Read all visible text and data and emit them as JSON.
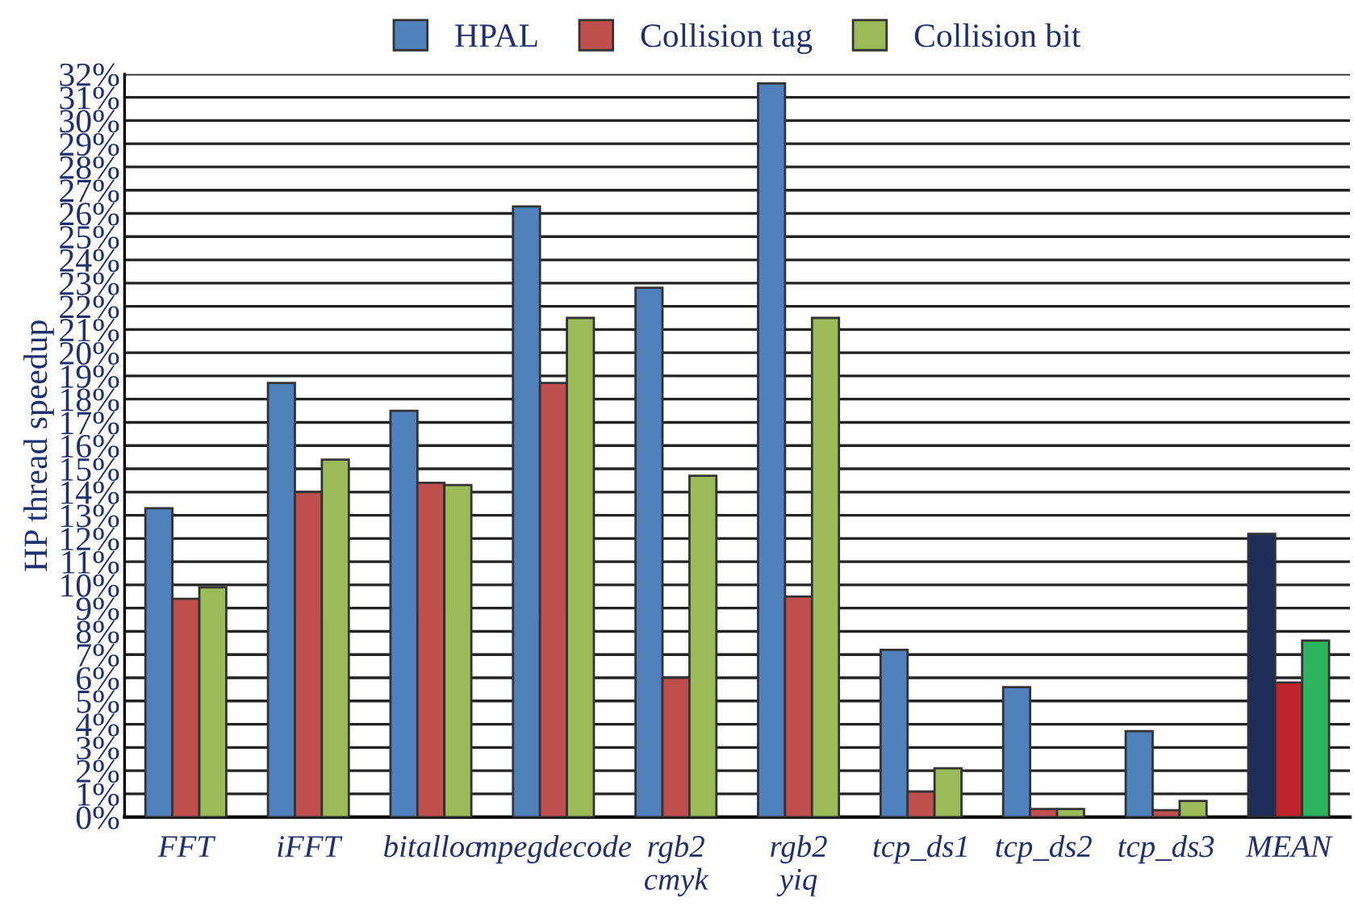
{
  "chart_data": {
    "type": "bar",
    "ylabel": "HP thread speedup",
    "categories": [
      "FFT",
      "iFFT",
      "bitalloc",
      "mpegdecode",
      "rgb2\ncmyk",
      "rgb2\nyiq",
      "tcp_ds1",
      "tcp_ds2",
      "tcp_ds3",
      "MEAN"
    ],
    "series": [
      {
        "name": "HPAL",
        "color": "#4f81bd",
        "colors": [
          "#4f81bd",
          "#4f81bd",
          "#4f81bd",
          "#4f81bd",
          "#4f81bd",
          "#4f81bd",
          "#4f81bd",
          "#4f81bd",
          "#4f81bd",
          "#1f2d5a"
        ],
        "values": [
          13.3,
          18.7,
          17.5,
          26.3,
          22.8,
          31.6,
          7.2,
          5.6,
          3.7,
          12.2
        ]
      },
      {
        "name": "Collision tag",
        "color": "#c0504d",
        "colors": [
          "#c0504d",
          "#c0504d",
          "#c0504d",
          "#c0504d",
          "#c0504d",
          "#c0504d",
          "#c0504d",
          "#c0504d",
          "#c0504d",
          "#c0222a"
        ],
        "values": [
          9.4,
          14.0,
          14.4,
          18.7,
          6.0,
          9.5,
          1.1,
          0.35,
          0.3,
          5.8
        ]
      },
      {
        "name": "Collision bit",
        "color": "#9bbb59",
        "colors": [
          "#9bbb59",
          "#9bbb59",
          "#9bbb59",
          "#9bbb59",
          "#9bbb59",
          "#9bbb59",
          "#9bbb59",
          "#9bbb59",
          "#9bbb59",
          "#2bb35e"
        ],
        "values": [
          9.9,
          15.4,
          14.3,
          21.5,
          14.7,
          21.5,
          2.1,
          0.35,
          0.7,
          7.6
        ]
      }
    ],
    "ylim": [
      0,
      32
    ],
    "yticks": [
      {
        "value": 0,
        "label": "0%"
      },
      {
        "value": 1,
        "label": "1%"
      },
      {
        "value": 2,
        "label": "2%"
      },
      {
        "value": 3,
        "label": "3%"
      },
      {
        "value": 4,
        "label": "4%"
      },
      {
        "value": 5,
        "label": "5%"
      },
      {
        "value": 6,
        "label": "6%"
      },
      {
        "value": 7,
        "label": "7%"
      },
      {
        "value": 8,
        "label": "8%"
      },
      {
        "value": 9,
        "label": "9%"
      },
      {
        "value": 10,
        "label": "10%"
      },
      {
        "value": 11,
        "label": "11%"
      },
      {
        "value": 12,
        "label": "12%"
      },
      {
        "value": 13,
        "label": "13%"
      },
      {
        "value": 14,
        "label": "14%"
      },
      {
        "value": 15,
        "label": "15%"
      },
      {
        "value": 16,
        "label": "16%"
      },
      {
        "value": 17,
        "label": "17%"
      },
      {
        "value": 18,
        "label": "18%"
      },
      {
        "value": 19,
        "label": "19%"
      },
      {
        "value": 20,
        "label": "20%"
      },
      {
        "value": 21,
        "label": "21%"
      },
      {
        "value": 22,
        "label": "22%"
      },
      {
        "value": 23,
        "label": "23%"
      },
      {
        "value": 24,
        "label": "24%"
      },
      {
        "value": 25,
        "label": "25%"
      },
      {
        "value": 26,
        "label": "26%"
      },
      {
        "value": 27,
        "label": "27%"
      },
      {
        "value": 28,
        "label": "28%"
      },
      {
        "value": 29,
        "label": "29%"
      },
      {
        "value": 30,
        "label": "30%"
      },
      {
        "value": 31,
        "label": "31%"
      },
      {
        "value": 32,
        "label": "32%"
      }
    ],
    "grid": "y",
    "legend": "top"
  }
}
